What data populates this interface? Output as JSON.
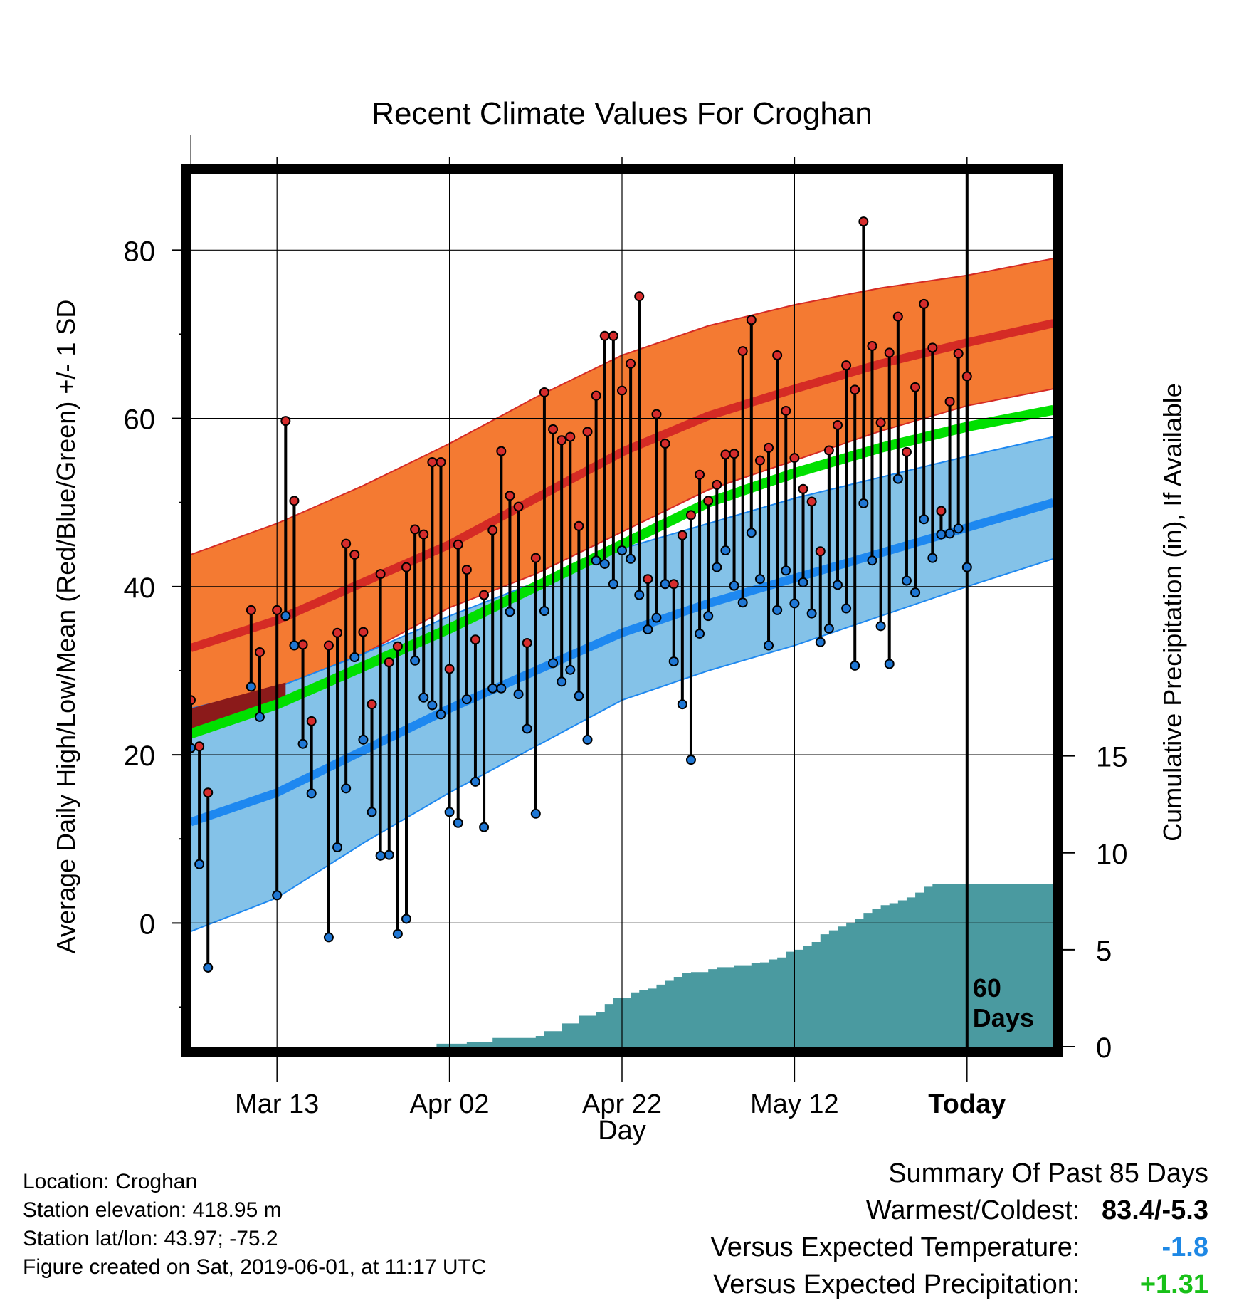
{
  "chart_data": {
    "type": "line",
    "title": "Recent Climate Values For Croghan",
    "xlabel": "Day",
    "ylabel": "Average Daily High/Low/Mean (Red/Blue/Green) +/- 1 SD",
    "y2label": "Cumulative Precipitation (in), If Available",
    "x_tick_labels": [
      "Mar 13",
      "Apr 02",
      "Apr 22",
      "May 12",
      "Today"
    ],
    "y_ticks": [
      0,
      20,
      40,
      60,
      80
    ],
    "y2_ticks": [
      0,
      5,
      10,
      15
    ],
    "ylim": [
      -14.7,
      89
    ],
    "y2lim": [
      0,
      45
    ],
    "xlim_days": [
      0,
      100
    ],
    "today_day": 90,
    "today_annotation": [
      "60",
      "Days"
    ],
    "grid": true,
    "colors": {
      "high_band": "#f47a32",
      "high_line": "#d52b25",
      "high_dark": "#8b1a1a",
      "mean_line": "#00e000",
      "low_band": "#84c2e8",
      "low_line": "#1e88f0",
      "precip": "#4a9aa0",
      "high_dot": "#d62c2c",
      "low_dot": "#1f77d4"
    },
    "normal_high_mean": [
      [
        0,
        32.7
      ],
      [
        10,
        36
      ],
      [
        20,
        40.5
      ],
      [
        30,
        45
      ],
      [
        40,
        50.5
      ],
      [
        50,
        56
      ],
      [
        60,
        60.3
      ],
      [
        70,
        63.5
      ],
      [
        80,
        66.5
      ],
      [
        90,
        69
      ],
      [
        100,
        71.3
      ]
    ],
    "normal_high_upper": [
      [
        0,
        43.8
      ],
      [
        10,
        47.5
      ],
      [
        20,
        52
      ],
      [
        30,
        57
      ],
      [
        40,
        62.5
      ],
      [
        50,
        67.5
      ],
      [
        60,
        71
      ],
      [
        70,
        73.5
      ],
      [
        80,
        75.5
      ],
      [
        90,
        77
      ],
      [
        100,
        79
      ]
    ],
    "normal_high_lower": [
      [
        0,
        25.5
      ],
      [
        10,
        28
      ],
      [
        20,
        32
      ],
      [
        30,
        37.5
      ],
      [
        40,
        41.5
      ],
      [
        50,
        46.5
      ],
      [
        60,
        51.5
      ],
      [
        70,
        55
      ],
      [
        80,
        58.5
      ],
      [
        90,
        61.5
      ],
      [
        100,
        63.5
      ]
    ],
    "normal_mean": [
      [
        0,
        22.5
      ],
      [
        10,
        26
      ],
      [
        20,
        30.5
      ],
      [
        30,
        35
      ],
      [
        40,
        40
      ],
      [
        50,
        45
      ],
      [
        60,
        50
      ],
      [
        70,
        53.5
      ],
      [
        80,
        56.5
      ],
      [
        90,
        59
      ],
      [
        100,
        61
      ]
    ],
    "normal_low_mean": [
      [
        0,
        12
      ],
      [
        10,
        15.5
      ],
      [
        20,
        20.5
      ],
      [
        30,
        25.5
      ],
      [
        40,
        30
      ],
      [
        50,
        34.5
      ],
      [
        60,
        38
      ],
      [
        70,
        41
      ],
      [
        80,
        44
      ],
      [
        90,
        47
      ],
      [
        100,
        50
      ]
    ],
    "normal_low_upper": [
      [
        0,
        25.5
      ],
      [
        10,
        28
      ],
      [
        20,
        32
      ],
      [
        30,
        36.5
      ],
      [
        40,
        40.5
      ],
      [
        50,
        44.5
      ],
      [
        60,
        47.5
      ],
      [
        70,
        50.5
      ],
      [
        80,
        53
      ],
      [
        90,
        55.5
      ],
      [
        100,
        57.8
      ]
    ],
    "normal_low_lower": [
      [
        0,
        -1
      ],
      [
        10,
        3
      ],
      [
        20,
        9.5
      ],
      [
        30,
        15.5
      ],
      [
        40,
        21
      ],
      [
        50,
        26.5
      ],
      [
        60,
        30
      ],
      [
        70,
        33
      ],
      [
        80,
        36.5
      ],
      [
        90,
        40
      ],
      [
        100,
        43.3
      ]
    ],
    "daily_highs": [
      26.5,
      21,
      15.5,
      null,
      null,
      null,
      null,
      37.2,
      32.2,
      null,
      37.2,
      59.7,
      50.2,
      33.1,
      24,
      null,
      33,
      34.5,
      45.1,
      43.8,
      34.6,
      26,
      41.5,
      31,
      32.9,
      42.3,
      46.8,
      46.2,
      54.8,
      54.8,
      30.2,
      45,
      42,
      33.7,
      39,
      46.7,
      56.1,
      50.8,
      49.5,
      33.3,
      43.4,
      63.1,
      58.7,
      57.4,
      57.8,
      47.2,
      58.4,
      62.7,
      69.8,
      69.8,
      63.3,
      66.5,
      74.5,
      40.9,
      60.5,
      57,
      40.3,
      46.1,
      48.5,
      53.3,
      50.2,
      52.1,
      55.7,
      55.8,
      68,
      71.7,
      55,
      56.5,
      67.5,
      60.9,
      55.3,
      51.6,
      50.1,
      44.2,
      56.2,
      59.2,
      66.3,
      63.4,
      83.4,
      68.6,
      59.5,
      67.8,
      72.1,
      56,
      63.7,
      73.6,
      68.4,
      49,
      62,
      67.7,
      65
    ],
    "daily_lows": [
      20.8,
      7,
      -5.3,
      null,
      null,
      null,
      null,
      28.1,
      24.5,
      null,
      3.3,
      36.5,
      33,
      21.3,
      15.4,
      null,
      -1.7,
      9,
      16,
      31.6,
      21.8,
      13.2,
      8,
      8.1,
      -1.3,
      0.5,
      31.2,
      26.8,
      25.9,
      24.8,
      13.2,
      11.9,
      26.6,
      16.8,
      11.4,
      27.9,
      27.9,
      37,
      27.2,
      23.1,
      13,
      37.1,
      30.9,
      28.7,
      30.1,
      27,
      21.8,
      43.1,
      42.7,
      40.3,
      44.3,
      43.3,
      39,
      34.9,
      36.3,
      40.3,
      31.1,
      26,
      19.4,
      34.4,
      36.5,
      42.3,
      44.3,
      40.1,
      38.1,
      46.4,
      40.9,
      33,
      37.2,
      41.9,
      38,
      40.5,
      36.8,
      33.4,
      35,
      40.2,
      37.4,
      30.6,
      49.9,
      43.1,
      35.3,
      30.8,
      52.8,
      40.7,
      39.3,
      48,
      43.4,
      46.2,
      46.3,
      46.9,
      42.3
    ],
    "cumulative_precip": [
      [
        27.5,
        0
      ],
      [
        28.5,
        0.15
      ],
      [
        32,
        0.25
      ],
      [
        35,
        0.45
      ],
      [
        40,
        0.55
      ],
      [
        41,
        0.8
      ],
      [
        43,
        1.2
      ],
      [
        45,
        1.6
      ],
      [
        47,
        1.8
      ],
      [
        48,
        2.2
      ],
      [
        49,
        2.5
      ],
      [
        51,
        2.8
      ],
      [
        52,
        2.9
      ],
      [
        53,
        3
      ],
      [
        54,
        3.2
      ],
      [
        55,
        3.4
      ],
      [
        56,
        3.6
      ],
      [
        57,
        3.8
      ],
      [
        58,
        3.85
      ],
      [
        60,
        4
      ],
      [
        61,
        4.1
      ],
      [
        63,
        4.2
      ],
      [
        65,
        4.3
      ],
      [
        66,
        4.35
      ],
      [
        67,
        4.5
      ],
      [
        68,
        4.6
      ],
      [
        69,
        4.9
      ],
      [
        70,
        5.0
      ],
      [
        71,
        5.2
      ],
      [
        72,
        5.4
      ],
      [
        73,
        5.8
      ],
      [
        74,
        6.0
      ],
      [
        75,
        6.2
      ],
      [
        76,
        6.4
      ],
      [
        77,
        6.6
      ],
      [
        78,
        6.9
      ],
      [
        79,
        7.1
      ],
      [
        80,
        7.3
      ],
      [
        81,
        7.4
      ],
      [
        82,
        7.55
      ],
      [
        83,
        7.7
      ],
      [
        84,
        7.95
      ],
      [
        85,
        8.25
      ],
      [
        86,
        8.4
      ],
      [
        100,
        8.4
      ]
    ]
  },
  "footer": {
    "location": "Location: Croghan",
    "elevation": "Station elevation: 418.95 m",
    "latlon": "Station lat/lon: 43.97; -75.2",
    "created": "Figure created on Sat, 2019-06-01, at 11:17 UTC"
  },
  "summary": {
    "header": "Summary Of Past 85 Days",
    "warmest_label": "Warmest/Coldest:",
    "warmest_value": "83.4/-5.3",
    "temp_label": "Versus Expected Temperature:",
    "temp_value": "-1.8",
    "temp_color": "#1e88e5",
    "precip_label": "Versus Expected Precipitation:",
    "precip_value": "+1.31",
    "precip_color": "#18c018"
  }
}
